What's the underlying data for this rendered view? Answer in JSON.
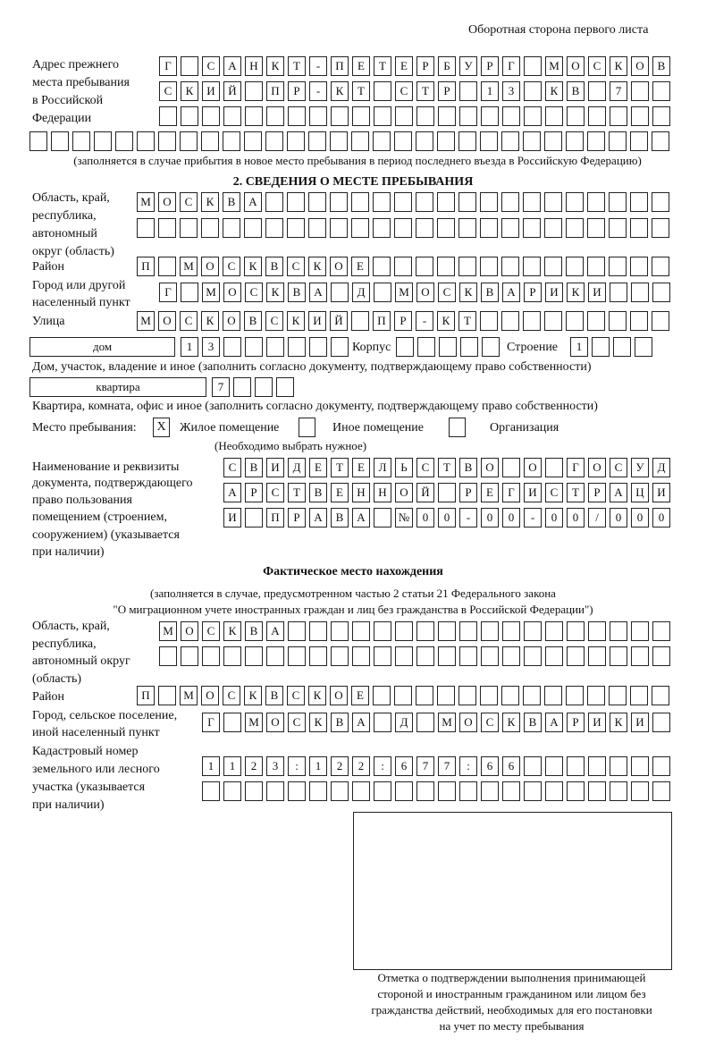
{
  "header": "Оборотная сторона первого листа",
  "prev_address": {
    "label": [
      "Адрес прежнего",
      "места пребывания",
      "в Российской",
      "Федерации"
    ],
    "rows": [
      "Г САНКТ-ПЕТЕРБУРГ МОСКОВ",
      "СКИЙ ПР-КТ СТР 13 КВ 7",
      "",
      ""
    ],
    "note": "(заполняется в случае прибытия в новое место пребывания в период последнего въезда в Российскую Федерацию)"
  },
  "section2": {
    "title": "2. СВЕДЕНИЯ О МЕСТЕ ПРЕБЫВАНИЯ",
    "region_label": [
      "Область, край,",
      "республика,",
      "автономный",
      "округ (область)"
    ],
    "region_rows": [
      "МОСКВА",
      ""
    ],
    "district_label": "Район",
    "district": "П МОСКВСКОЕ",
    "city_label": [
      "Город или другой",
      "населенный пункт"
    ],
    "city": "Г МОСКВА Д МОСКВАРИКИ",
    "street_label": "Улица",
    "street": "МОСКОВСКИЙ ПР-КТ",
    "house_type": "дом",
    "house": "13",
    "korpus_label": "Корпус",
    "korpus": "",
    "stroenie_label": "Строение",
    "stroenie": "1",
    "house_note": "Дом, участок, владение и иное (заполнить согласно документу, подтверждающему право собственности)",
    "flat_type": "квартира",
    "flat": "7",
    "flat_note": "Квартира, комната, офис и иное (заполнить согласно документу, подтверждающему право собственности)",
    "stay_label": "Место пребывания:",
    "options": [
      {
        "label": "Жилое помещение",
        "mark": "X"
      },
      {
        "label": "Иное помещение",
        "mark": ""
      },
      {
        "label": "Организация",
        "mark": ""
      }
    ],
    "options_note": "(Необходимо выбрать нужное)",
    "doc_label": [
      "Наименование и реквизиты",
      "документа, подтверждающего",
      "право пользования",
      "помещением (строением,",
      "сооружением) (указывается",
      "при наличии)"
    ],
    "doc_rows": [
      "СВИДЕТЕЛЬСТВО О ГОСУД",
      "АРСТВЕННОЙ РЕГИСТРАЦИ",
      "И ПРАВА №00-00-00/000"
    ]
  },
  "actual": {
    "title": "Фактическое место нахождения",
    "note": [
      "(заполняется в случае, предусмотренном частью 2 статьи 21 Федерального закона",
      "\"О миграционном учете иностранных граждан и лиц без гражданства в Российской Федерации\")"
    ],
    "region_label": [
      "Область, край,",
      "республика,",
      "автономный округ",
      "(область)"
    ],
    "region_rows": [
      "МОСКВА",
      ""
    ],
    "district_label": "Район",
    "district": "П МОСКВСКОЕ",
    "city_label": [
      "Город, сельское поселение,",
      "иной населенный пункт"
    ],
    "city": "Г МОСКВА Д МОСКВАРИКИ",
    "cadastre_label": [
      "Кадастровый номер",
      "земельного или лесного",
      "участка (указывается",
      "при наличии)"
    ],
    "cadastre_rows": [
      "1123:122:677:66",
      ""
    ]
  },
  "stamp_caption": [
    "Отметка о подтверждении выполнения принимающей",
    "стороной и иностранным гражданином или лицом без",
    "гражданства действий, необходимых для его постановки",
    "на учет по месту пребывания"
  ]
}
